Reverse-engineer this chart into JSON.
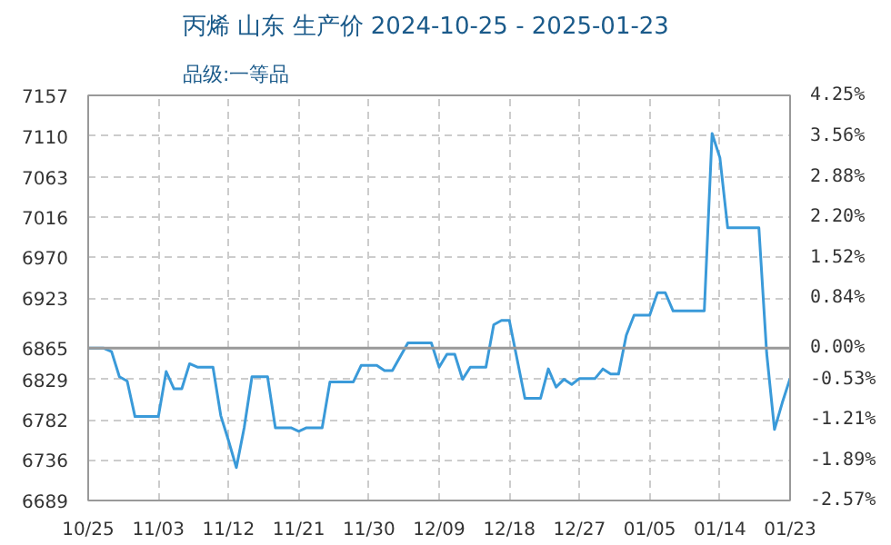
{
  "chart_data": {
    "type": "line",
    "title": "丙烯 山东 生产价 2024-10-25 - 2025-01-23",
    "subtitle": "品级:一等品",
    "x": [
      "2024-10-25",
      "2024-10-27",
      "2024-10-28",
      "2024-10-29",
      "2024-10-30",
      "2024-10-31",
      "2024-11-03",
      "2024-11-04",
      "2024-11-05",
      "2024-11-06",
      "2024-11-07",
      "2024-11-08",
      "2024-11-10",
      "2024-11-11",
      "2024-11-12",
      "2024-11-13",
      "2024-11-14",
      "2024-11-15",
      "2024-11-17",
      "2024-11-18",
      "2024-11-20",
      "2024-11-21",
      "2024-11-22",
      "2024-11-24",
      "2024-11-25",
      "2024-11-28",
      "2024-11-29",
      "2024-12-01",
      "2024-12-02",
      "2024-12-03",
      "2024-12-05",
      "2024-12-08",
      "2024-12-09",
      "2024-12-10",
      "2024-12-11",
      "2024-12-12",
      "2024-12-13",
      "2024-12-15",
      "2024-12-16",
      "2024-12-17",
      "2024-12-18",
      "2024-12-20",
      "2024-12-22",
      "2024-12-23",
      "2024-12-24",
      "2024-12-25",
      "2024-12-26",
      "2024-12-27",
      "2024-12-29",
      "2024-12-30",
      "2024-12-31",
      "2025-01-01",
      "2025-01-02",
      "2025-01-03",
      "2025-01-05",
      "2025-01-06",
      "2025-01-07",
      "2025-01-08",
      "2025-01-12",
      "2025-01-13",
      "2025-01-14",
      "2025-01-15",
      "2025-01-19",
      "2025-01-20",
      "2025-01-21",
      "2025-01-22",
      "2025-01-23"
    ],
    "series": [
      {
        "color": "#3a9ad9",
        "values": [
          6865,
          6865,
          6861,
          6832,
          6827,
          6786,
          6786,
          6838,
          6818,
          6818,
          6847,
          6843,
          6843,
          6787,
          6758,
          6727,
          6773,
          6832,
          6832,
          6773,
          6773,
          6769,
          6773,
          6773,
          6826,
          6826,
          6845,
          6845,
          6839,
          6839,
          6871,
          6871,
          6843,
          6858,
          6858,
          6829,
          6843,
          6843,
          6892,
          6897,
          6897,
          6807,
          6807,
          6841,
          6820,
          6829,
          6823,
          6830,
          6830,
          6841,
          6835,
          6835,
          6880,
          6903,
          6903,
          6929,
          6929,
          6908,
          6908,
          7113,
          7085,
          7004,
          7004,
          6859,
          6771,
          6802,
          6830
        ]
      }
    ],
    "xlim": [
      "2024-10-25",
      "2025-01-23"
    ],
    "xticks": [
      {
        "value": "2024-10-25",
        "label": "10/25"
      },
      {
        "value": "2024-11-03",
        "label": "11/03"
      },
      {
        "value": "2024-11-12",
        "label": "11/12"
      },
      {
        "value": "2024-11-21",
        "label": "11/21"
      },
      {
        "value": "2024-11-30",
        "label": "11/30"
      },
      {
        "value": "2024-12-09",
        "label": "12/09"
      },
      {
        "value": "2024-12-18",
        "label": "12/18"
      },
      {
        "value": "2024-12-27",
        "label": "12/27"
      },
      {
        "value": "2025-01-05",
        "label": "01/05"
      },
      {
        "value": "2025-01-14",
        "label": "01/14"
      },
      {
        "value": "2025-01-23",
        "label": "01/23"
      }
    ],
    "ylim": [
      6689,
      7157
    ],
    "yticks": [
      6689,
      6736,
      6782,
      6829,
      6865,
      6923,
      6970,
      7016,
      7063,
      7110,
      7157
    ],
    "y2lim": [
      -2.57,
      4.25
    ],
    "y2ticks": [
      {
        "value": -2.57,
        "label": "-2.57%"
      },
      {
        "value": -1.89,
        "label": "-1.89%"
      },
      {
        "value": -1.21,
        "label": "-1.21%"
      },
      {
        "value": -0.53,
        "label": "-0.53%"
      },
      {
        "value": 0,
        "label": "0.00%"
      },
      {
        "value": 0.84,
        "label": "0.84%"
      },
      {
        "value": 1.52,
        "label": "1.52%"
      },
      {
        "value": 2.2,
        "label": "2.20%"
      },
      {
        "value": 2.88,
        "label": "2.88%"
      },
      {
        "value": 3.56,
        "label": "3.56%"
      },
      {
        "value": 4.25,
        "label": "4.25%"
      }
    ],
    "ref_lines": [
      {
        "axis": "y",
        "value": 6865,
        "color": "#999999"
      }
    ],
    "grid": true,
    "marker": "none",
    "line_style": "solid"
  }
}
